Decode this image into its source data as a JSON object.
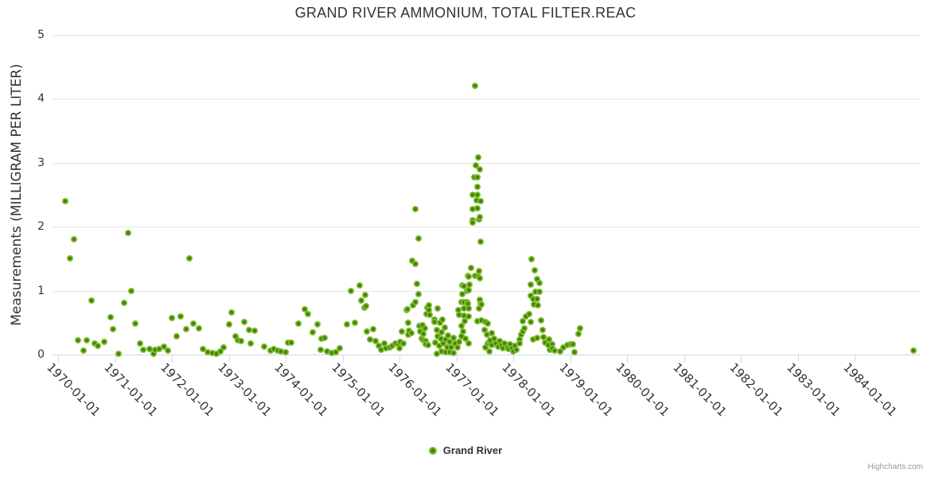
{
  "chart": {
    "title": "GRAND RIVER AMMONIUM, TOTAL FILTER.REAC",
    "y_axis_title": "Measurements (MILLIGRAM PER LITER)",
    "legend_label": "Grand River",
    "credit": "Highcharts.com",
    "colors": {
      "point_outer": "#7ebd2f",
      "point_inner": "#46820a",
      "grid": "#e6e6e6",
      "axis_line": "#ccd6eb",
      "text": "#333333",
      "credit_text": "#999999"
    }
  },
  "chart_data": {
    "type": "scatter",
    "title": "GRAND RIVER AMMONIUM, TOTAL FILTER.REAC",
    "xlabel": "",
    "ylabel": "Measurements (MILLIGRAM PER LITER)",
    "ylim": [
      0,
      5
    ],
    "y_ticks": [
      0,
      1,
      2,
      3,
      4,
      5
    ],
    "x_ticks": [
      "1970-01-01",
      "1971-01-01",
      "1972-01-01",
      "1973-01-01",
      "1974-01-01",
      "1975-01-01",
      "1976-01-01",
      "1977-01-01",
      "1978-01-01",
      "1979-01-01",
      "1980-01-01",
      "1981-01-01",
      "1982-01-01",
      "1983-01-01",
      "1984-01-01"
    ],
    "grid": true,
    "legend_position": "bottom",
    "series": [
      {
        "name": "Grand River",
        "points": [
          [
            1970.12,
            2.4
          ],
          [
            1970.21,
            1.5
          ],
          [
            1970.28,
            1.8
          ],
          [
            1970.35,
            0.23
          ],
          [
            1970.44,
            0.06
          ],
          [
            1970.5,
            0.23
          ],
          [
            1970.58,
            0.85
          ],
          [
            1970.64,
            0.17
          ],
          [
            1970.7,
            0.14
          ],
          [
            1970.81,
            0.2
          ],
          [
            1970.92,
            0.58
          ],
          [
            1970.96,
            0.4
          ],
          [
            1971.06,
            0.01
          ],
          [
            1971.16,
            0.81
          ],
          [
            1971.23,
            1.9
          ],
          [
            1971.28,
            1.0
          ],
          [
            1971.35,
            0.49
          ],
          [
            1971.44,
            0.17
          ],
          [
            1971.49,
            0.07
          ],
          [
            1971.61,
            0.09
          ],
          [
            1971.68,
            0.01
          ],
          [
            1971.7,
            0.07
          ],
          [
            1971.77,
            0.09
          ],
          [
            1971.86,
            0.12
          ],
          [
            1971.92,
            0.06
          ],
          [
            1972.0,
            0.57
          ],
          [
            1972.08,
            0.29
          ],
          [
            1972.15,
            0.6
          ],
          [
            1972.25,
            0.4
          ],
          [
            1972.3,
            1.5
          ],
          [
            1972.37,
            0.49
          ],
          [
            1972.47,
            0.41
          ],
          [
            1972.54,
            0.09
          ],
          [
            1972.63,
            0.04
          ],
          [
            1972.71,
            0.02
          ],
          [
            1972.78,
            0.01
          ],
          [
            1972.85,
            0.05
          ],
          [
            1972.91,
            0.11
          ],
          [
            1973.0,
            0.47
          ],
          [
            1973.05,
            0.66
          ],
          [
            1973.11,
            0.29
          ],
          [
            1973.16,
            0.22
          ],
          [
            1973.21,
            0.21
          ],
          [
            1973.27,
            0.51
          ],
          [
            1973.35,
            0.39
          ],
          [
            1973.38,
            0.17
          ],
          [
            1973.45,
            0.37
          ],
          [
            1973.62,
            0.12
          ],
          [
            1973.73,
            0.06
          ],
          [
            1973.79,
            0.09
          ],
          [
            1973.86,
            0.06
          ],
          [
            1973.91,
            0.05
          ],
          [
            1973.99,
            0.04
          ],
          [
            1974.04,
            0.19
          ],
          [
            1974.1,
            0.19
          ],
          [
            1974.22,
            0.49
          ],
          [
            1974.33,
            0.71
          ],
          [
            1974.39,
            0.63
          ],
          [
            1974.47,
            0.35
          ],
          [
            1974.56,
            0.47
          ],
          [
            1974.61,
            0.07
          ],
          [
            1974.63,
            0.25
          ],
          [
            1974.68,
            0.26
          ],
          [
            1974.72,
            0.05
          ],
          [
            1974.81,
            0.02
          ],
          [
            1974.88,
            0.04
          ],
          [
            1974.95,
            0.1
          ],
          [
            1975.07,
            0.47
          ],
          [
            1975.14,
            1.0
          ],
          [
            1975.21,
            0.5
          ],
          [
            1975.29,
            1.08
          ],
          [
            1975.33,
            0.85
          ],
          [
            1975.38,
            0.73
          ],
          [
            1975.39,
            0.93
          ],
          [
            1975.41,
            0.76
          ],
          [
            1975.42,
            0.36
          ],
          [
            1975.48,
            0.24
          ],
          [
            1975.54,
            0.4
          ],
          [
            1975.58,
            0.21
          ],
          [
            1975.63,
            0.14
          ],
          [
            1975.68,
            0.07
          ],
          [
            1975.73,
            0.17
          ],
          [
            1975.76,
            0.1
          ],
          [
            1975.83,
            0.11
          ],
          [
            1975.87,
            0.14
          ],
          [
            1975.93,
            0.17
          ],
          [
            1975.98,
            0.16
          ],
          [
            1976.0,
            0.1
          ],
          [
            1976.01,
            0.2
          ],
          [
            1976.04,
            0.36
          ],
          [
            1976.07,
            0.17
          ],
          [
            1976.12,
            0.7
          ],
          [
            1976.13,
            0.71
          ],
          [
            1976.15,
            0.5
          ],
          [
            1976.15,
            0.31
          ],
          [
            1976.16,
            0.37
          ],
          [
            1976.21,
            0.34
          ],
          [
            1976.22,
            1.47
          ],
          [
            1976.23,
            0.77
          ],
          [
            1976.27,
            1.42
          ],
          [
            1976.28,
            2.28
          ],
          [
            1976.28,
            0.82
          ],
          [
            1976.3,
            1.11
          ],
          [
            1976.33,
            1.82
          ],
          [
            1976.33,
            0.95
          ],
          [
            1976.35,
            0.45
          ],
          [
            1976.36,
            0.36
          ],
          [
            1976.39,
            0.25
          ],
          [
            1976.4,
            0.46
          ],
          [
            1976.42,
            0.32
          ],
          [
            1976.42,
            0.22
          ],
          [
            1976.44,
            0.41
          ],
          [
            1976.46,
            0.21
          ],
          [
            1976.46,
            0.16
          ],
          [
            1976.47,
            0.63
          ],
          [
            1976.48,
            0.73
          ],
          [
            1976.5,
            0.15
          ],
          [
            1976.51,
            0.77
          ],
          [
            1976.51,
            0.7
          ],
          [
            1976.53,
            0.62
          ],
          [
            1976.61,
            0.55
          ],
          [
            1976.61,
            0.51
          ],
          [
            1976.63,
            0.19
          ],
          [
            1976.65,
            0.39
          ],
          [
            1976.65,
            0.01
          ],
          [
            1976.67,
            0.72
          ],
          [
            1976.67,
            0.29
          ],
          [
            1976.7,
            0.14
          ],
          [
            1976.71,
            0.5
          ],
          [
            1976.72,
            0.25
          ],
          [
            1976.74,
            0.35
          ],
          [
            1976.74,
            0.05
          ],
          [
            1976.75,
            0.55
          ],
          [
            1976.77,
            0.17
          ],
          [
            1976.79,
            0.42
          ],
          [
            1976.81,
            0.24
          ],
          [
            1976.81,
            0.04
          ],
          [
            1976.84,
            0.11
          ],
          [
            1976.85,
            0.3
          ],
          [
            1976.88,
            0.2
          ],
          [
            1976.88,
            0.04
          ],
          [
            1976.91,
            0.11
          ],
          [
            1976.95,
            0.26
          ],
          [
            1976.95,
            0.02
          ],
          [
            1976.98,
            0.17
          ],
          [
            1977.01,
            0.11
          ],
          [
            1977.03,
            0.7
          ],
          [
            1977.05,
            0.62
          ],
          [
            1977.05,
            0.2
          ],
          [
            1977.08,
            0.82
          ],
          [
            1977.08,
            0.45
          ],
          [
            1977.09,
            0.29
          ],
          [
            1977.1,
            1.08
          ],
          [
            1977.1,
            0.95
          ],
          [
            1977.11,
            0.36
          ],
          [
            1977.13,
            1.07
          ],
          [
            1977.13,
            0.82
          ],
          [
            1977.13,
            0.72
          ],
          [
            1977.13,
            0.61
          ],
          [
            1977.14,
            0.52
          ],
          [
            1977.15,
            0.25
          ],
          [
            1977.19,
            1.0
          ],
          [
            1977.19,
            0.82
          ],
          [
            1977.2,
            1.23
          ],
          [
            1977.2,
            0.8
          ],
          [
            1977.21,
            1.22
          ],
          [
            1977.21,
            1.01
          ],
          [
            1977.21,
            0.72
          ],
          [
            1977.21,
            0.6
          ],
          [
            1977.21,
            0.17
          ],
          [
            1977.23,
            1.1
          ],
          [
            1977.25,
            1.36
          ],
          [
            1977.28,
            2.5
          ],
          [
            1977.28,
            2.28
          ],
          [
            1977.28,
            2.1
          ],
          [
            1977.28,
            2.06
          ],
          [
            1977.31,
            2.77
          ],
          [
            1977.33,
            4.2
          ],
          [
            1977.33,
            1.23
          ],
          [
            1977.34,
            2.96
          ],
          [
            1977.35,
            2.41
          ],
          [
            1977.36,
            0.52
          ],
          [
            1977.37,
            2.77
          ],
          [
            1977.37,
            2.62
          ],
          [
            1977.37,
            2.5
          ],
          [
            1977.37,
            2.29
          ],
          [
            1977.38,
            3.08
          ],
          [
            1977.38,
            1.22
          ],
          [
            1977.4,
            2.11
          ],
          [
            1977.4,
            1.31
          ],
          [
            1977.4,
            0.72
          ],
          [
            1977.41,
            2.9
          ],
          [
            1977.41,
            2.15
          ],
          [
            1977.41,
            1.19
          ],
          [
            1977.41,
            0.86
          ],
          [
            1977.42,
            2.4
          ],
          [
            1977.42,
            1.77
          ],
          [
            1977.42,
            0.8
          ],
          [
            1977.43,
            0.78
          ],
          [
            1977.43,
            0.53
          ],
          [
            1977.49,
            0.39
          ],
          [
            1977.5,
            0.51
          ],
          [
            1977.51,
            0.11
          ],
          [
            1977.54,
            0.31
          ],
          [
            1977.55,
            0.49
          ],
          [
            1977.55,
            0.17
          ],
          [
            1977.57,
            0.2
          ],
          [
            1977.57,
            0.05
          ],
          [
            1977.59,
            0.22
          ],
          [
            1977.62,
            0.34
          ],
          [
            1977.62,
            0.15
          ],
          [
            1977.66,
            0.25
          ],
          [
            1977.69,
            0.17
          ],
          [
            1977.73,
            0.12
          ],
          [
            1977.76,
            0.21
          ],
          [
            1977.79,
            0.15
          ],
          [
            1977.81,
            0.1
          ],
          [
            1977.84,
            0.17
          ],
          [
            1977.88,
            0.11
          ],
          [
            1977.91,
            0.09
          ],
          [
            1977.94,
            0.16
          ],
          [
            1977.97,
            0.1
          ],
          [
            1978.0,
            0.05
          ],
          [
            1978.03,
            0.14
          ],
          [
            1978.05,
            0.07
          ],
          [
            1978.11,
            0.24
          ],
          [
            1978.11,
            0.17
          ],
          [
            1978.14,
            0.31
          ],
          [
            1978.16,
            0.52
          ],
          [
            1978.16,
            0.36
          ],
          [
            1978.19,
            0.41
          ],
          [
            1978.22,
            0.6
          ],
          [
            1978.27,
            0.63
          ],
          [
            1978.3,
            1.09
          ],
          [
            1978.3,
            0.92
          ],
          [
            1978.3,
            0.51
          ],
          [
            1978.32,
            1.49
          ],
          [
            1978.34,
            0.24
          ],
          [
            1978.35,
            0.87
          ],
          [
            1978.36,
            0.78
          ],
          [
            1978.37,
            1.32
          ],
          [
            1978.39,
            0.98
          ],
          [
            1978.41,
            0.26
          ],
          [
            1978.42,
            1.18
          ],
          [
            1978.42,
            0.87
          ],
          [
            1978.43,
            0.77
          ],
          [
            1978.46,
            1.12
          ],
          [
            1978.46,
            0.98
          ],
          [
            1978.48,
            0.53
          ],
          [
            1978.52,
            0.39
          ],
          [
            1978.53,
            0.27
          ],
          [
            1978.56,
            0.19
          ],
          [
            1978.61,
            0.15
          ],
          [
            1978.63,
            0.24
          ],
          [
            1978.64,
            0.07
          ],
          [
            1978.68,
            0.16
          ],
          [
            1978.68,
            0.1
          ],
          [
            1978.73,
            0.06
          ],
          [
            1978.82,
            0.05
          ],
          [
            1978.87,
            0.11
          ],
          [
            1978.94,
            0.15
          ],
          [
            1979.0,
            0.16
          ],
          [
            1979.04,
            0.16
          ],
          [
            1979.07,
            0.04
          ],
          [
            1979.14,
            0.32
          ],
          [
            1979.17,
            0.41
          ],
          [
            1985.03,
            0.06
          ]
        ]
      }
    ]
  }
}
